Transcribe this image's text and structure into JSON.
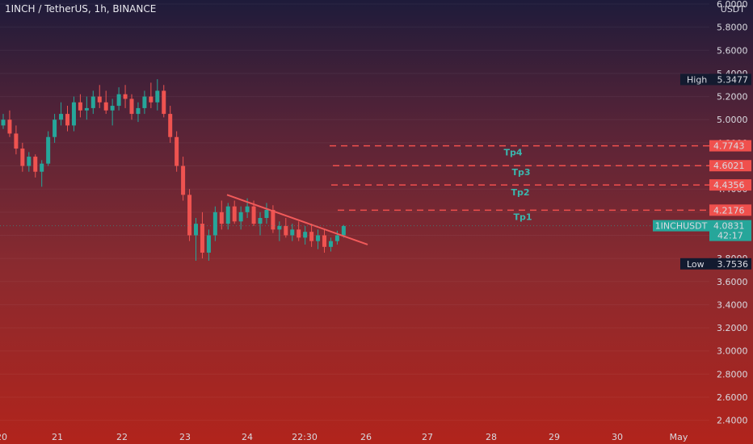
{
  "header": {
    "title": "1INCH / TetherUS, 1h, BINANCE",
    "currency": "USDT"
  },
  "chart_data": {
    "type": "candlestick",
    "y_ticks": [
      6.0,
      5.8,
      5.6,
      5.4,
      5.2,
      5.0,
      4.8,
      4.6,
      4.4,
      4.2,
      4.0,
      3.8,
      3.6,
      3.4,
      3.2,
      3.0,
      2.8,
      2.6,
      2.4
    ],
    "y_tick_labels": [
      "6.0000",
      "5.8000",
      "5.6000",
      "5.4000",
      "5.2000",
      "5.0000",
      "4.8000",
      "4.6000",
      "4.4000",
      "4.2000",
      "4.0000",
      "3.8000",
      "3.6000",
      "3.4000",
      "3.2000",
      "3.0000",
      "2.8000",
      "2.6000",
      "2.4000"
    ],
    "ylim": [
      2.3,
      6.0
    ],
    "x_tick_labels": [
      "20",
      "21",
      "22",
      "23",
      "24",
      "22:30",
      "26",
      "27",
      "28",
      "29",
      "30",
      "May"
    ],
    "price_labels": [
      {
        "name": "High",
        "value": 5.3477,
        "text": "5.3477"
      },
      {
        "name": "Low",
        "value": 3.7536,
        "text": "3.7536"
      }
    ],
    "current": {
      "symbol": "1INCHUSDT",
      "value": 4.0831,
      "text": "4.0831",
      "countdown": "42:17"
    },
    "targets": [
      {
        "label": "Tp1",
        "value": 4.2176,
        "text": "4.2176"
      },
      {
        "label": "Tp2",
        "value": 4.4356,
        "text": "4.4356"
      },
      {
        "label": "Tp3",
        "value": 4.6021,
        "text": "4.6021"
      },
      {
        "label": "Tp4",
        "value": 4.7743,
        "text": "4.7743"
      }
    ],
    "trendline": {
      "start": 4.35,
      "end": 3.92
    },
    "candles": [
      [
        4.95,
        5.05,
        4.92,
        5.0
      ],
      [
        5.0,
        5.08,
        4.85,
        4.88
      ],
      [
        4.88,
        4.95,
        4.7,
        4.75
      ],
      [
        4.75,
        4.8,
        4.55,
        4.6
      ],
      [
        4.6,
        4.72,
        4.55,
        4.68
      ],
      [
        4.68,
        4.7,
        4.5,
        4.55
      ],
      [
        4.55,
        4.65,
        4.42,
        4.62
      ],
      [
        4.62,
        4.9,
        4.6,
        4.85
      ],
      [
        4.85,
        5.05,
        4.8,
        5.0
      ],
      [
        5.0,
        5.15,
        4.95,
        5.05
      ],
      [
        5.05,
        5.12,
        4.9,
        4.95
      ],
      [
        4.95,
        5.2,
        4.9,
        5.15
      ],
      [
        5.15,
        5.22,
        5.02,
        5.08
      ],
      [
        5.08,
        5.2,
        5.0,
        5.1
      ],
      [
        5.1,
        5.25,
        5.05,
        5.2
      ],
      [
        5.2,
        5.3,
        5.1,
        5.15
      ],
      [
        5.15,
        5.25,
        5.05,
        5.08
      ],
      [
        5.08,
        5.18,
        4.95,
        5.12
      ],
      [
        5.12,
        5.28,
        5.08,
        5.22
      ],
      [
        5.22,
        5.3,
        5.1,
        5.18
      ],
      [
        5.18,
        5.22,
        5.0,
        5.05
      ],
      [
        5.05,
        5.15,
        4.98,
        5.1
      ],
      [
        5.1,
        5.25,
        5.05,
        5.2
      ],
      [
        5.2,
        5.32,
        5.1,
        5.15
      ],
      [
        5.15,
        5.35,
        5.08,
        5.25
      ],
      [
        5.25,
        5.3,
        5.02,
        5.05
      ],
      [
        5.05,
        5.12,
        4.8,
        4.85
      ],
      [
        4.85,
        4.9,
        4.55,
        4.6
      ],
      [
        4.6,
        4.68,
        4.3,
        4.35
      ],
      [
        4.35,
        4.4,
        3.95,
        4.0
      ],
      [
        4.0,
        4.15,
        3.78,
        4.1
      ],
      [
        4.1,
        4.2,
        3.8,
        3.85
      ],
      [
        3.85,
        4.05,
        3.78,
        4.0
      ],
      [
        4.0,
        4.25,
        3.95,
        4.2
      ],
      [
        4.2,
        4.3,
        4.05,
        4.1
      ],
      [
        4.1,
        4.28,
        4.05,
        4.25
      ],
      [
        4.25,
        4.3,
        4.1,
        4.12
      ],
      [
        4.12,
        4.25,
        4.05,
        4.2
      ],
      [
        4.2,
        4.32,
        4.15,
        4.25
      ],
      [
        4.25,
        4.3,
        4.08,
        4.1
      ],
      [
        4.1,
        4.2,
        4.0,
        4.15
      ],
      [
        4.15,
        4.28,
        4.1,
        4.22
      ],
      [
        4.22,
        4.26,
        4.02,
        4.05
      ],
      [
        4.05,
        4.12,
        3.95,
        4.08
      ],
      [
        4.08,
        4.15,
        3.98,
        4.0
      ],
      [
        4.0,
        4.1,
        3.95,
        4.05
      ],
      [
        4.05,
        4.12,
        3.95,
        3.98
      ],
      [
        3.98,
        4.08,
        3.92,
        4.03
      ],
      [
        4.03,
        4.1,
        3.9,
        3.95
      ],
      [
        3.95,
        4.05,
        3.88,
        4.0
      ],
      [
        4.0,
        4.05,
        3.85,
        3.9
      ],
      [
        3.9,
        3.98,
        3.86,
        3.95
      ],
      [
        3.95,
        4.04,
        3.92,
        4.0
      ],
      [
        4.0,
        4.09,
        3.98,
        4.08
      ]
    ]
  }
}
